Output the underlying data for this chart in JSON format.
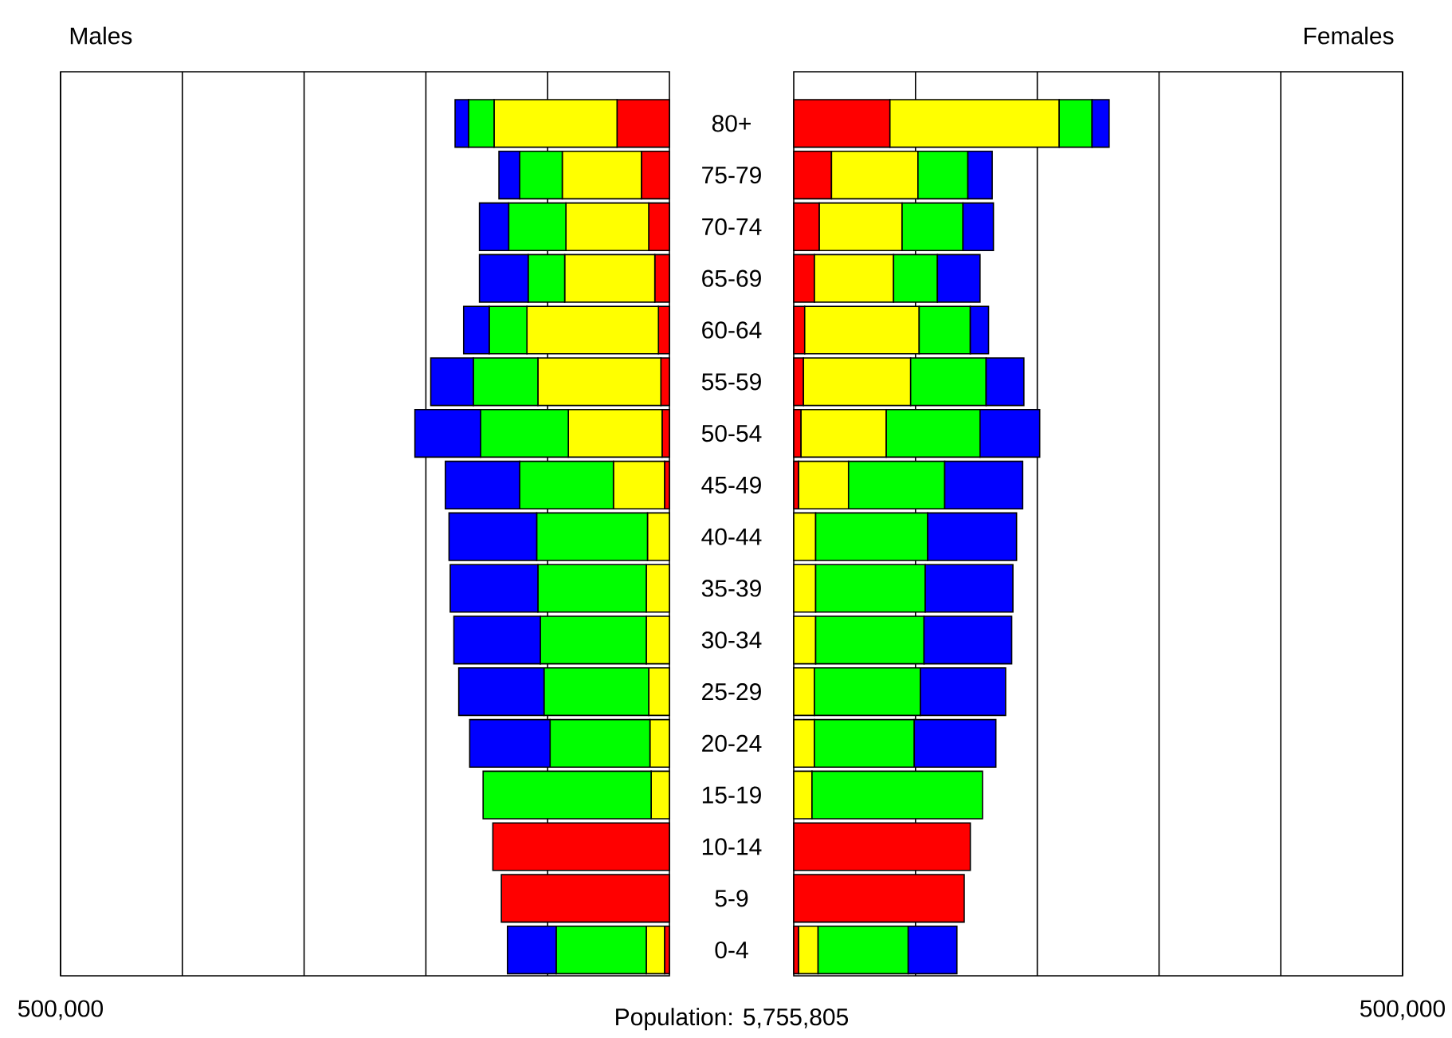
{
  "chart_data": [
    {
      "type": "bar",
      "orientation": "horizontal",
      "stacked": true,
      "title": "Males",
      "categories": [
        "80+",
        "75-79",
        "70-74",
        "65-69",
        "60-64",
        "55-59",
        "50-54",
        "45-49",
        "40-44",
        "35-39",
        "30-34",
        "25-29",
        "20-24",
        "15-19",
        "10-14",
        "5-9",
        "0-4"
      ],
      "series": [
        {
          "color": "#ff0000",
          "values": [
            43000,
            23000,
            17000,
            12000,
            9000,
            7000,
            6000,
            4000,
            null,
            null,
            null,
            null,
            null,
            null,
            145000,
            138000,
            4000
          ]
        },
        {
          "color": "#ffff00",
          "values": [
            101000,
            65000,
            68000,
            74000,
            108000,
            101000,
            77000,
            42000,
            18000,
            19000,
            19000,
            17000,
            16000,
            15000,
            null,
            null,
            15000
          ]
        },
        {
          "color": "#00ff00",
          "values": [
            21000,
            35000,
            47000,
            30000,
            31000,
            53000,
            72000,
            77000,
            91000,
            89000,
            87000,
            86000,
            82000,
            138000,
            null,
            null,
            74000
          ]
        },
        {
          "color": "#0000ff",
          "values": [
            11000,
            17000,
            24000,
            40000,
            21000,
            35000,
            54000,
            61000,
            72000,
            72000,
            71000,
            70000,
            66000,
            null,
            null,
            null,
            40000
          ]
        }
      ],
      "xlim": [
        500000,
        0
      ],
      "xticks": [
        {
          "value": 100000,
          "label": null
        },
        {
          "value": 200000,
          "label": null
        },
        {
          "value": 300000,
          "label": null
        },
        {
          "value": 400000,
          "label": null
        },
        {
          "value": 500000,
          "label": "500,000"
        }
      ],
      "grid": "x",
      "annotations": [
        "Population:  5,755,805"
      ]
    },
    {
      "type": "bar",
      "orientation": "horizontal",
      "stacked": true,
      "title": "Females",
      "categories": [
        null,
        null,
        null,
        null,
        null,
        null,
        null,
        null,
        null,
        null,
        null,
        null,
        null,
        null,
        null,
        null,
        null
      ],
      "series": [
        {
          "color": "#ff0000",
          "values": [
            79000,
            31000,
            21000,
            17000,
            9000,
            8000,
            6000,
            4000,
            null,
            null,
            null,
            null,
            null,
            null,
            145000,
            140000,
            4000
          ]
        },
        {
          "color": "#ffff00",
          "values": [
            139000,
            71000,
            68000,
            65000,
            94000,
            88000,
            70000,
            41000,
            18000,
            18000,
            18000,
            17000,
            17000,
            15000,
            null,
            null,
            16000
          ]
        },
        {
          "color": "#00ff00",
          "values": [
            27000,
            41000,
            50000,
            36000,
            42000,
            62000,
            77000,
            79000,
            92000,
            90000,
            89000,
            87000,
            82000,
            140000,
            null,
            null,
            74000
          ]
        },
        {
          "color": "#0000ff",
          "values": [
            14000,
            20000,
            25000,
            35000,
            15000,
            31000,
            49000,
            64000,
            73000,
            72000,
            72000,
            70000,
            67000,
            null,
            null,
            null,
            40000
          ]
        }
      ],
      "xlim": [
        0,
        500000
      ],
      "xticks": [
        {
          "value": 100000,
          "label": null
        },
        {
          "value": 200000,
          "label": null
        },
        {
          "value": 300000,
          "label": null
        },
        {
          "value": 400000,
          "label": null
        },
        {
          "value": 500000,
          "label": "500,000"
        }
      ],
      "grid": "x",
      "tick_labels": "x"
    }
  ]
}
